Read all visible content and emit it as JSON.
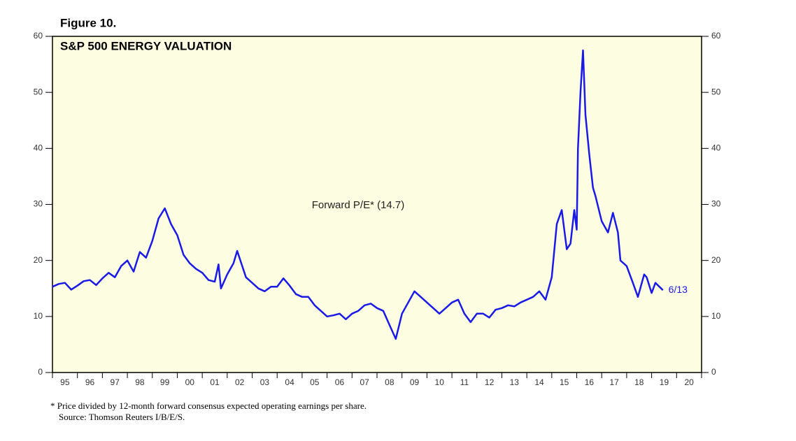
{
  "chart_data": {
    "type": "line",
    "figure_label": "Figure 10.",
    "title": "S&P 500 ENERGY VALUATION",
    "annotation": "Forward P/E* (14.7)",
    "end_label": "6/13",
    "footnote": "*   Price divided by 12-month forward consensus expected operating earnings per share.",
    "source": "Source: Thomson Reuters I/B/E/S.",
    "color": "#1a1ae6",
    "x": [
      1995.0,
      1995.25,
      1995.5,
      1995.75,
      1996.0,
      1996.25,
      1996.5,
      1996.75,
      1997.0,
      1997.25,
      1997.5,
      1997.75,
      1998.0,
      1998.25,
      1998.5,
      1998.75,
      1999.0,
      1999.25,
      1999.5,
      1999.75,
      2000.0,
      2000.25,
      2000.5,
      2000.75,
      2001.0,
      2001.25,
      2001.5,
      2001.65,
      2001.75,
      2002.0,
      2002.25,
      2002.4,
      2002.75,
      2003.0,
      2003.25,
      2003.5,
      2003.75,
      2004.0,
      2004.25,
      2004.5,
      2004.75,
      2005.0,
      2005.25,
      2005.5,
      2005.75,
      2006.0,
      2006.25,
      2006.5,
      2006.75,
      2007.0,
      2007.25,
      2007.5,
      2007.75,
      2008.0,
      2008.25,
      2008.5,
      2008.75,
      2009.0,
      2009.25,
      2009.5,
      2009.75,
      2010.0,
      2010.25,
      2010.5,
      2010.75,
      2011.0,
      2011.25,
      2011.5,
      2011.75,
      2012.0,
      2012.25,
      2012.5,
      2012.75,
      2013.0,
      2013.25,
      2013.5,
      2013.75,
      2014.0,
      2014.25,
      2014.5,
      2014.75,
      2015.0,
      2015.2,
      2015.4,
      2015.6,
      2015.75,
      2015.9,
      2016.0,
      2016.05,
      2016.15,
      2016.25,
      2016.35,
      2016.5,
      2016.65,
      2016.75,
      2017.0,
      2017.25,
      2017.45,
      2017.65,
      2017.75,
      2018.0,
      2018.25,
      2018.45,
      2018.7,
      2018.8,
      2019.0,
      2019.15,
      2019.45
    ],
    "values": [
      15.3,
      15.8,
      16.0,
      14.8,
      15.5,
      16.3,
      16.5,
      15.6,
      16.8,
      17.8,
      17.0,
      19.0,
      20.0,
      18.0,
      21.5,
      20.5,
      23.5,
      27.5,
      29.3,
      26.5,
      24.5,
      21.0,
      19.5,
      18.5,
      17.8,
      16.5,
      16.2,
      19.3,
      15.0,
      17.5,
      19.5,
      21.7,
      17.0,
      16.0,
      15.0,
      14.5,
      15.3,
      15.3,
      16.8,
      15.5,
      14.0,
      13.5,
      13.5,
      12.0,
      11.0,
      10.0,
      10.2,
      10.5,
      9.5,
      10.5,
      11.0,
      12.0,
      12.3,
      11.5,
      11.0,
      8.5,
      6.0,
      10.5,
      12.5,
      14.5,
      13.5,
      12.5,
      11.5,
      10.5,
      11.5,
      12.5,
      13.0,
      10.5,
      9.0,
      10.5,
      10.5,
      9.8,
      11.2,
      11.5,
      12.0,
      11.8,
      12.5,
      13.0,
      13.5,
      14.5,
      13.0,
      17.0,
      26.5,
      29.0,
      22.0,
      23.0,
      29.0,
      25.5,
      40.0,
      50.0,
      57.5,
      46.0,
      39.0,
      33.0,
      31.5,
      27.0,
      25.0,
      28.5,
      25.0,
      20.0,
      19.0,
      16.0,
      13.5,
      17.5,
      17.0,
      14.2,
      16.0,
      14.7
    ],
    "xlim": [
      1995,
      2021
    ],
    "xticks": [
      1995,
      1996,
      1997,
      1998,
      1999,
      2000,
      2001,
      2002,
      2003,
      2004,
      2005,
      2006,
      2007,
      2008,
      2009,
      2010,
      2011,
      2012,
      2013,
      2014,
      2015,
      2016,
      2017,
      2018,
      2019,
      2020,
      2021
    ],
    "year_labels": [
      "95",
      "96",
      "97",
      "98",
      "99",
      "00",
      "01",
      "02",
      "03",
      "04",
      "05",
      "06",
      "07",
      "08",
      "09",
      "10",
      "11",
      "12",
      "13",
      "14",
      "15",
      "16",
      "17",
      "18",
      "19",
      "20"
    ],
    "ylim": [
      0,
      60
    ],
    "yticks": [
      0,
      10,
      20,
      30,
      40,
      50,
      60
    ]
  }
}
